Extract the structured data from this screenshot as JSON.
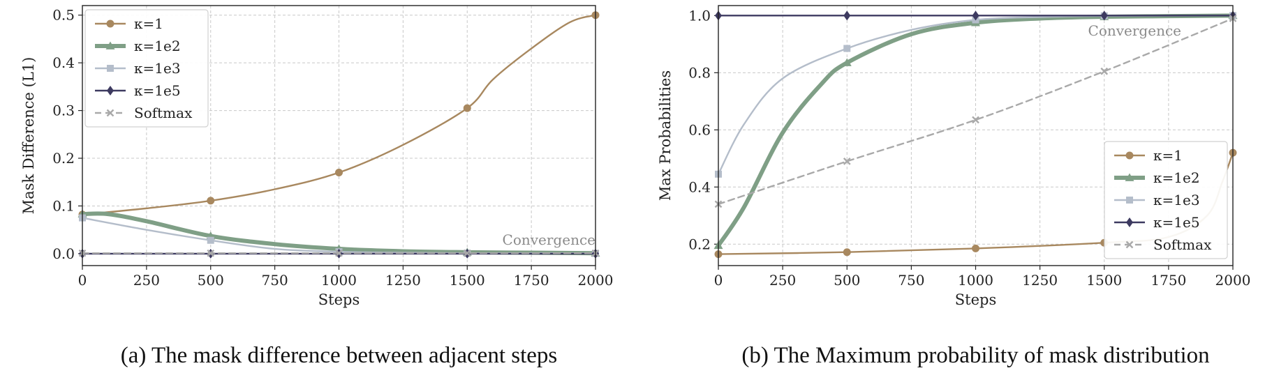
{
  "chart_data": [
    {
      "type": "line",
      "caption": "(a) The mask difference between adjacent steps",
      "xlabel": "Steps",
      "ylabel": "Mask Difference (L1)",
      "xlim": [
        0,
        2000
      ],
      "ylim": [
        -0.025,
        0.52
      ],
      "xticks": [
        0,
        250,
        500,
        750,
        1000,
        1250,
        1500,
        1750,
        2000
      ],
      "yticks": [
        "0.0",
        "0.1",
        "0.2",
        "0.3",
        "0.4",
        "0.5"
      ],
      "grid": true,
      "legend_position": "top-left",
      "annotation": "Convergence",
      "series": [
        {
          "name": "κ=1",
          "color": "#a8885f",
          "marker": "circle",
          "style": "solid",
          "width": 2.4,
          "x": [
            0,
            250,
            500,
            750,
            1000,
            1250,
            1500,
            1600,
            1750,
            1900,
            2000
          ],
          "y": [
            0.082,
            0.095,
            0.111,
            0.135,
            0.17,
            0.228,
            0.305,
            0.365,
            0.43,
            0.485,
            0.5
          ],
          "markers_x": [
            0,
            500,
            1000,
            1500,
            2000
          ]
        },
        {
          "name": "κ=1e2",
          "color": "#7f9f86",
          "marker": "triangle",
          "style": "solid",
          "width": 6,
          "x": [
            0,
            100,
            250,
            500,
            750,
            1000,
            1250,
            1500,
            1750,
            2000
          ],
          "y": [
            0.083,
            0.083,
            0.068,
            0.037,
            0.02,
            0.01,
            0.005,
            0.003,
            0.002,
            0.001
          ],
          "markers_x": [
            0,
            500,
            1000,
            1500,
            2000
          ]
        },
        {
          "name": "κ=1e3",
          "color": "#b4bdca",
          "marker": "square",
          "style": "solid",
          "width": 2.4,
          "x": [
            0,
            250,
            500,
            750,
            1000,
            1250,
            1500,
            1750,
            2000
          ],
          "y": [
            0.075,
            0.05,
            0.028,
            0.01,
            0.004,
            0.002,
            0.001,
            0.001,
            0.0005
          ],
          "markers_x": [
            0,
            500,
            1000,
            1500,
            2000
          ]
        },
        {
          "name": "κ=1e5",
          "color": "#3d3a60",
          "marker": "diamond",
          "style": "solid",
          "width": 2.4,
          "x": [
            0,
            500,
            1000,
            1500,
            2000
          ],
          "y": [
            0.0,
            0.0,
            0.0,
            0.0,
            0.0
          ],
          "markers_x": [
            0,
            500,
            1000,
            1500,
            2000
          ]
        },
        {
          "name": "Softmax",
          "color": "#a9a9a9",
          "marker": "x",
          "style": "dashed",
          "width": 2.4,
          "x": [
            0,
            500,
            1000,
            1500,
            2000
          ],
          "y": [
            0.001,
            0.001,
            0.001,
            0.001,
            0.001
          ],
          "markers_x": [
            0,
            500,
            1000,
            1500,
            2000
          ]
        }
      ]
    },
    {
      "type": "line",
      "caption": "(b) The Maximum probability of mask distribution",
      "xlabel": "Steps",
      "ylabel": "Max Probabilities",
      "xlim": [
        0,
        2000
      ],
      "ylim": [
        0.125,
        1.035
      ],
      "xticks": [
        0,
        250,
        500,
        750,
        1000,
        1250,
        1500,
        1750,
        2000
      ],
      "yticks": [
        "0.2",
        "0.4",
        "0.6",
        "0.8",
        "1.0"
      ],
      "grid": true,
      "legend_position": "bottom-right",
      "annotation": "Convergence",
      "series": [
        {
          "name": "κ=1",
          "color": "#a8885f",
          "marker": "circle",
          "style": "solid",
          "width": 2.4,
          "x": [
            0,
            500,
            1000,
            1500,
            1750,
            1900,
            1960,
            2000
          ],
          "y": [
            0.165,
            0.172,
            0.185,
            0.205,
            0.225,
            0.3,
            0.42,
            0.52
          ],
          "markers_x": [
            0,
            500,
            1000,
            1500,
            2000
          ]
        },
        {
          "name": "κ=1e2",
          "color": "#7f9f86",
          "marker": "triangle",
          "style": "solid",
          "width": 6,
          "x": [
            0,
            100,
            250,
            400,
            500,
            750,
            1000,
            1250,
            1500,
            1750,
            2000
          ],
          "y": [
            0.195,
            0.33,
            0.59,
            0.76,
            0.835,
            0.935,
            0.975,
            0.99,
            0.996,
            0.998,
            1.0
          ],
          "markers_x": [
            0,
            500,
            1000,
            1500,
            2000
          ]
        },
        {
          "name": "κ=1e3",
          "color": "#b4bdca",
          "marker": "square",
          "style": "solid",
          "width": 2.4,
          "x": [
            0,
            100,
            250,
            500,
            750,
            1000,
            1250,
            1500,
            2000
          ],
          "y": [
            0.445,
            0.62,
            0.78,
            0.885,
            0.95,
            0.985,
            0.995,
            0.999,
            1.0
          ],
          "markers_x": [
            0,
            500,
            1000,
            1500,
            2000
          ]
        },
        {
          "name": "κ=1e5",
          "color": "#3d3a60",
          "marker": "diamond",
          "style": "solid",
          "width": 2.4,
          "x": [
            0,
            500,
            1000,
            1500,
            2000
          ],
          "y": [
            1.0,
            1.0,
            1.0,
            1.0,
            1.0
          ],
          "markers_x": [
            0,
            500,
            1000,
            1500,
            2000
          ]
        },
        {
          "name": "Softmax",
          "color": "#a9a9a9",
          "marker": "x",
          "style": "dashed",
          "width": 2.4,
          "x": [
            0,
            500,
            1000,
            1500,
            2000
          ],
          "y": [
            0.34,
            0.49,
            0.635,
            0.805,
            0.99
          ],
          "markers_x": [
            0,
            500,
            1000,
            1500,
            2000
          ]
        }
      ]
    }
  ]
}
